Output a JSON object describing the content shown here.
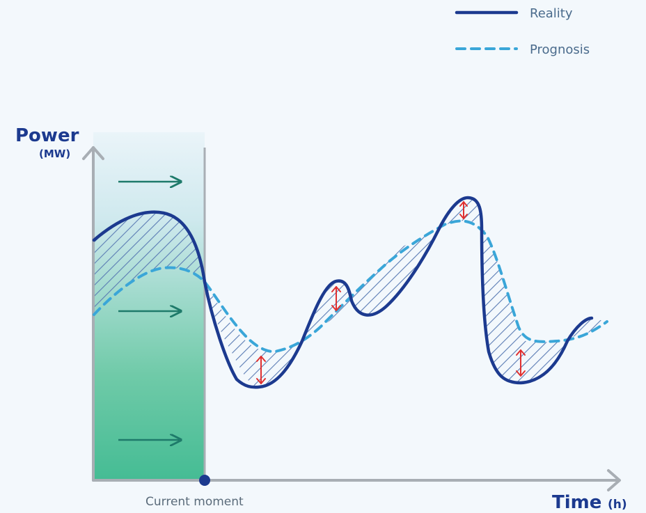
{
  "legend": {
    "reality_label": "Reality",
    "prognosis_label": "Prognosis"
  },
  "y_axis": {
    "title": "Power",
    "unit": "(MW)"
  },
  "x_axis": {
    "title": "Time",
    "unit": "(h)"
  },
  "marker": {
    "label": "Current moment"
  },
  "colors": {
    "reality": "#1c3a8f",
    "prognosis": "#3aa6d8",
    "axis": "#a8aeb4",
    "arrow_flow": "#1e7a6a",
    "deviation": "#e03030",
    "area_top": "#e6f3f8",
    "area_bottom": "#47bd95"
  },
  "icons": {
    "flow_arrow": "arrow-right-icon",
    "deviation_marker": "double-headed-arrow-icon"
  }
}
